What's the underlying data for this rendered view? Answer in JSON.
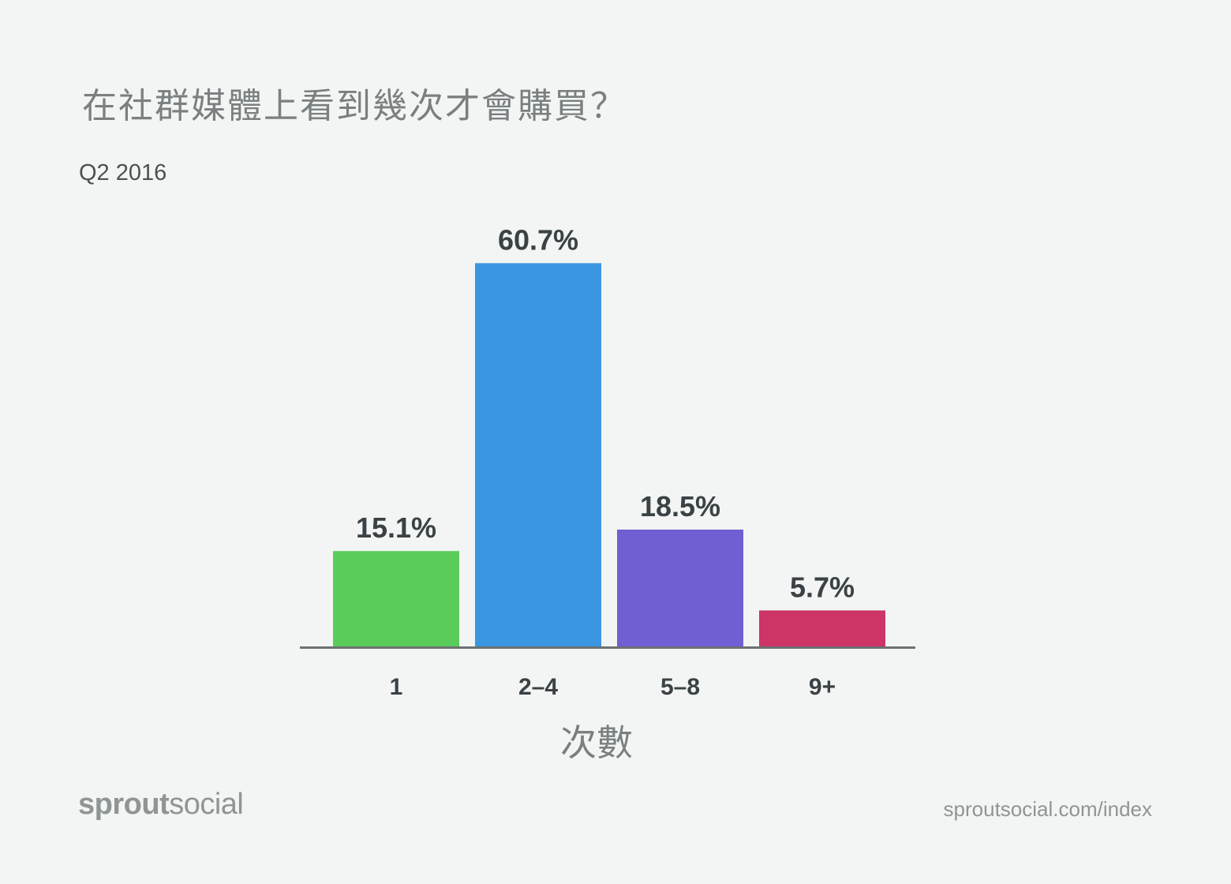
{
  "header": {
    "title": "在社群媒體上看到幾次才會購買？",
    "subtitle": "Q2 2016"
  },
  "chart_data": {
    "type": "bar",
    "title": "在社群媒體上看到幾次才會購買？",
    "subtitle": "Q2 2016",
    "xlabel": "次數",
    "ylabel": "",
    "categories": [
      "1",
      "2–4",
      "5–8",
      "9+"
    ],
    "values": [
      15.1,
      60.7,
      18.5,
      5.7
    ],
    "value_labels": [
      "15.1%",
      "60.7%",
      "18.5%",
      "5.7%"
    ],
    "colors": [
      "#5acc5a",
      "#3b96e1",
      "#705ed3",
      "#cc3566"
    ],
    "ylim": [
      0,
      100
    ],
    "grid": false,
    "legend": "none"
  },
  "footer": {
    "brand_bold": "sprout",
    "brand_regular": "social",
    "url": "sproutsocial.com/index"
  }
}
